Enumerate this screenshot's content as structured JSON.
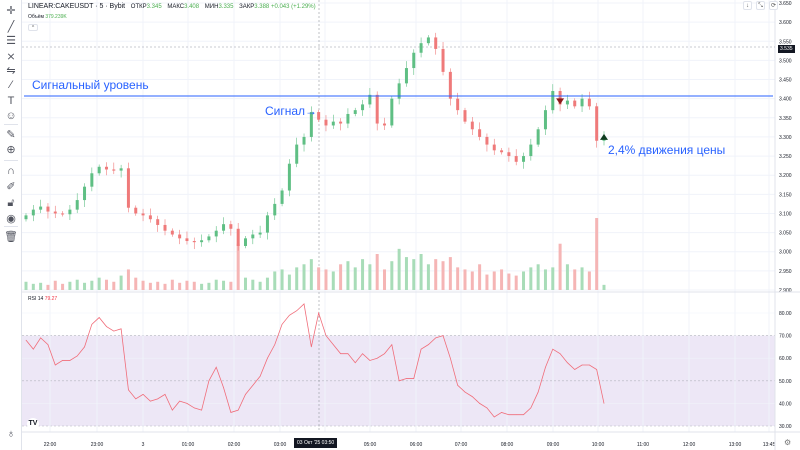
{
  "legend": {
    "symbol": "LINEAR:CAKEUSDT · 5 · Bybit",
    "open_label": "ОТКР",
    "open": "3.345",
    "high_label": "МАКС",
    "high": "3.408",
    "low_label": "МИН",
    "low": "3.335",
    "close_label": "ЗАКР",
    "close": "3.388",
    "change": "+0.043 (+1.29%)",
    "volume_label": "Объём",
    "volume": "379.239K",
    "collapse": "^"
  },
  "rsi_legend": {
    "label": "RSI 14",
    "value": "79.27"
  },
  "annotations": {
    "level": "Сигнальный уровень",
    "signal": "Сигнал→",
    "move": "2,4% движения цены"
  },
  "crosshair_label": "03 Окт '25  03:50",
  "current_price_label": "3.535",
  "toolbar_icons": [
    "crosshair-icon",
    "trend-line-icon",
    "fib-icon",
    "pattern-icon",
    "forecast-icon",
    "brush-icon",
    "text-icon",
    "emoji-icon",
    "ruler-icon",
    "zoom-in-icon",
    "magnet-icon",
    "lock-drawing-icon",
    "unlock-icon",
    "eye-icon",
    "trash-icon"
  ],
  "colors": {
    "up": "#5fbf84",
    "down": "#ef7a7a",
    "up_vol": "#a8dcb8",
    "down_vol": "#f5b5b5",
    "level": "#2962ff",
    "rsi": "#f06d7a",
    "rsi_band": "#ede7f6"
  },
  "chart_data": {
    "type": "candlestick",
    "symbol": "CAKEUSDT",
    "interval": "5",
    "price_axis": {
      "min": 2.9,
      "max": 3.65,
      "ticks": [
        "3.650",
        "3.600",
        "3.550",
        "3.500",
        "3.450",
        "3.400",
        "3.350",
        "3.300",
        "3.250",
        "3.200",
        "3.150",
        "3.100",
        "3.050",
        "3.000",
        "2.950",
        "2.900"
      ]
    },
    "time_ticks": [
      "22:00",
      "23:00",
      "3",
      "01:00",
      "02:00",
      "03:00",
      "04:00",
      "05:00",
      "06:00",
      "07:00",
      "08:00",
      "09:00",
      "10:00",
      "11:00",
      "12:00",
      "13:00",
      "13:45"
    ],
    "close": [
      3.095,
      3.11,
      3.118,
      3.105,
      3.1,
      3.098,
      3.11,
      3.135,
      3.17,
      3.205,
      3.222,
      3.215,
      3.212,
      3.218,
      3.115,
      3.1,
      3.095,
      3.085,
      3.07,
      3.055,
      3.045,
      3.035,
      3.028,
      3.025,
      3.03,
      3.04,
      3.055,
      3.072,
      3.06,
      3.015,
      3.035,
      3.045,
      3.05,
      3.095,
      3.125,
      3.16,
      3.23,
      3.28,
      3.3,
      3.365,
      3.345,
      3.33,
      3.34,
      3.335,
      3.36,
      3.37,
      3.385,
      3.41,
      3.335,
      3.33,
      3.4,
      3.44,
      3.48,
      3.52,
      3.545,
      3.56,
      3.53,
      3.47,
      3.4,
      3.37,
      3.34,
      3.32,
      3.3,
      3.28,
      3.265,
      3.26,
      3.25,
      3.235,
      3.25,
      3.28,
      3.32,
      3.37,
      3.42,
      3.385,
      3.395,
      3.38,
      3.4,
      3.38,
      3.29,
      3.3
    ],
    "volume": [
      8,
      6,
      7,
      5,
      9,
      6,
      8,
      10,
      7,
      9,
      12,
      10,
      8,
      14,
      20,
      12,
      9,
      7,
      8,
      6,
      10,
      7,
      9,
      8,
      6,
      7,
      10,
      9,
      8,
      45,
      12,
      10,
      8,
      12,
      18,
      20,
      15,
      22,
      25,
      30,
      22,
      20,
      18,
      25,
      28,
      22,
      30,
      25,
      35,
      20,
      28,
      40,
      32,
      30,
      35,
      25,
      30,
      28,
      32,
      22,
      20,
      18,
      25,
      15,
      18,
      20,
      16,
      14,
      18,
      22,
      25,
      20,
      22,
      45,
      25,
      20,
      22,
      18,
      70,
      5
    ],
    "rsi": [
      68,
      64,
      69,
      66,
      57,
      59,
      59,
      61,
      65,
      75,
      78,
      74,
      72,
      73,
      46,
      42,
      44,
      41,
      42,
      44,
      37,
      41,
      40,
      38,
      37,
      50,
      56,
      47,
      36,
      37,
      44,
      48,
      52,
      60,
      66,
      75,
      79,
      81,
      84,
      65,
      80,
      70,
      66,
      62,
      62,
      58,
      62,
      59,
      60,
      62,
      66,
      50,
      51,
      51,
      64,
      66,
      69,
      70,
      60,
      48,
      45,
      43,
      40,
      38,
      34,
      36,
      35,
      35,
      35,
      38,
      45,
      56,
      64,
      62,
      58,
      55,
      57,
      57,
      55,
      40
    ],
    "rsi_axis": {
      "ticks": [
        "80.00",
        "70.00",
        "60.00",
        "50.00",
        "40.00",
        "30.00"
      ],
      "upper_band": 70,
      "lower_band": 30,
      "mid": 50
    },
    "signal_level": 3.407,
    "signal_index": 39,
    "sell_marker_index": 73,
    "target_marker_index": 79
  }
}
